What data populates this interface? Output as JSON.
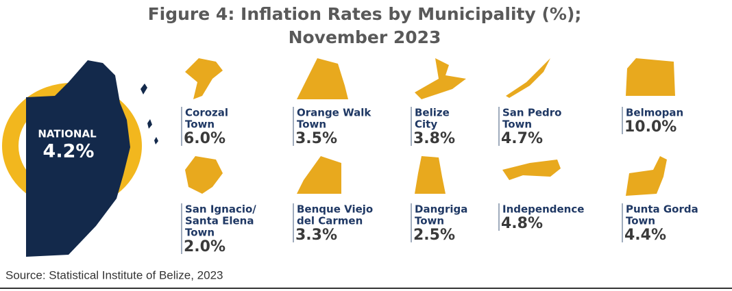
{
  "header": {
    "title_lines": [
      "Figure 4: Inflation Rates by Municipality (%);",
      "November 2023"
    ]
  },
  "national": {
    "label": "NATIONAL",
    "value": "4.2%"
  },
  "municipalities": [
    {
      "name_lines": [
        "Corozal",
        "Town"
      ],
      "value": "6.0%"
    },
    {
      "name_lines": [
        "Orange Walk",
        "Town"
      ],
      "value": "3.5%"
    },
    {
      "name_lines": [
        "Belize",
        "City"
      ],
      "value": "3.8%"
    },
    {
      "name_lines": [
        "San Pedro",
        "Town"
      ],
      "value": "4.7%"
    },
    {
      "name_lines": [
        "Belmopan"
      ],
      "value": "10.0%"
    },
    {
      "name_lines": [
        "San Ignacio/",
        "Santa Elena",
        "Town"
      ],
      "value": "2.0%"
    },
    {
      "name_lines": [
        "Benque Viejo",
        "del Carmen"
      ],
      "value": "3.3%"
    },
    {
      "name_lines": [
        "Dangriga",
        "Town"
      ],
      "value": "2.5%"
    },
    {
      "name_lines": [
        "Independence"
      ],
      "value": "4.8%"
    },
    {
      "name_lines": [
        "Punta Gorda",
        "Town"
      ],
      "value": "4.4%"
    }
  ],
  "source": "Source: Statistical Institute of Belize, 2023"
}
